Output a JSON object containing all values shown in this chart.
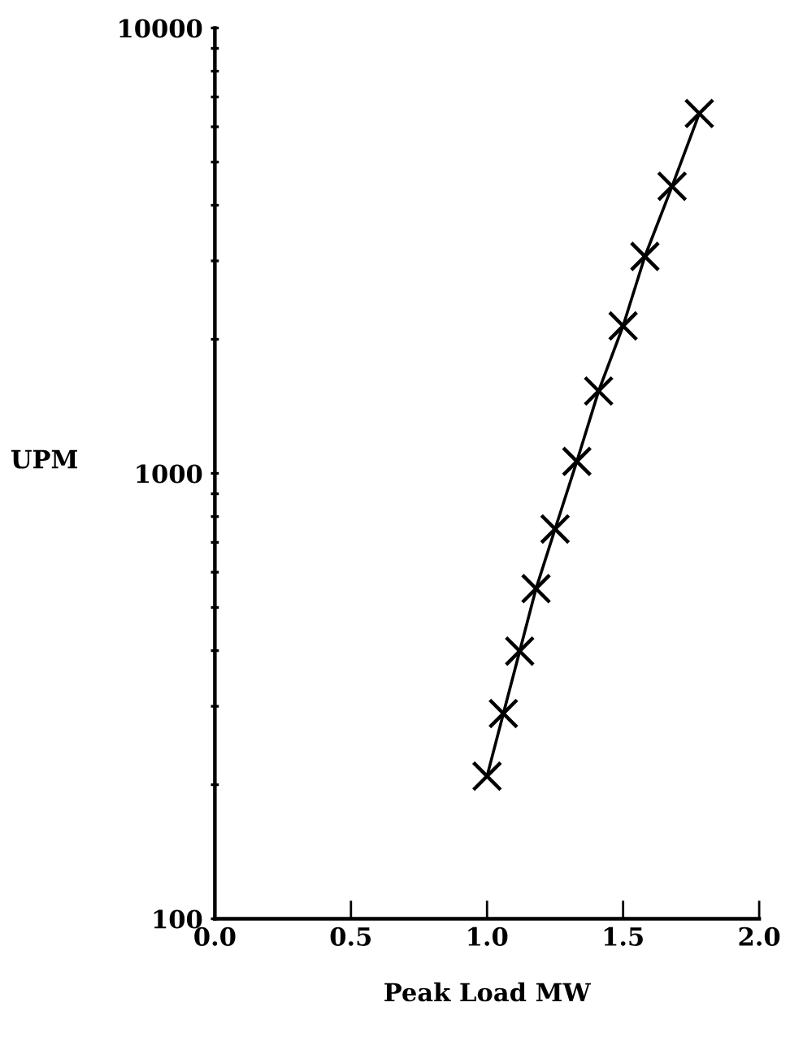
{
  "chart_data": {
    "type": "line",
    "xlabel": "Peak Load MW",
    "ylabel": "UPM",
    "log": "y",
    "marker": "cross",
    "line_style": "solid",
    "grid": false,
    "legend": false,
    "x": [
      1.0,
      1.06,
      1.12,
      1.18,
      1.25,
      1.33,
      1.41,
      1.5,
      1.58,
      1.68,
      1.78
    ],
    "series": [
      {
        "color": "#000000",
        "values": [
          209,
          289,
          399,
          551,
          750,
          1064,
          1531,
          2143,
          3070,
          4413,
          6428
        ]
      }
    ],
    "xlim": [
      0.0,
      2.0
    ],
    "xticks": [
      {
        "value": 0.0,
        "label": "0.0"
      },
      {
        "value": 0.5,
        "label": "0.5"
      },
      {
        "value": 1.0,
        "label": "1.0"
      },
      {
        "value": 1.5,
        "label": "1.5"
      },
      {
        "value": 2.0,
        "label": "2.0"
      }
    ],
    "ylim": [
      100,
      10000
    ],
    "yticks": [
      100,
      {
        "value": 200,
        "label": null
      },
      {
        "value": 300,
        "label": null
      },
      {
        "value": 400,
        "label": null
      },
      {
        "value": 500,
        "label": null
      },
      {
        "value": 600,
        "label": null
      },
      {
        "value": 700,
        "label": null
      },
      {
        "value": 800,
        "label": null
      },
      {
        "value": 900,
        "label": null
      },
      1000,
      {
        "value": 2000,
        "label": null
      },
      {
        "value": 3000,
        "label": null
      },
      {
        "value": 4000,
        "label": null
      },
      {
        "value": 5000,
        "label": null
      },
      {
        "value": 6000,
        "label": null
      },
      {
        "value": 7000,
        "label": null
      },
      {
        "value": 8000,
        "label": null
      },
      {
        "value": 9000,
        "label": null
      },
      10000
    ]
  }
}
